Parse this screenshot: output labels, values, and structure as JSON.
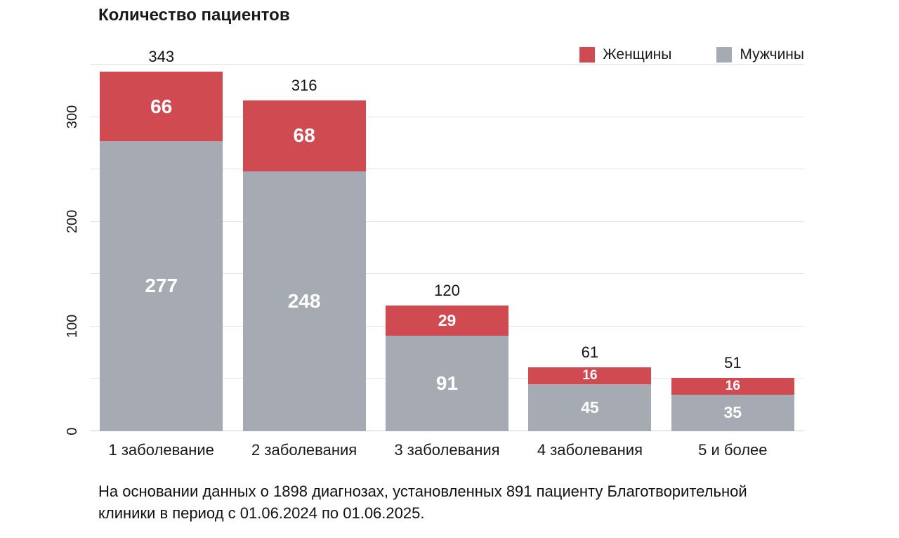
{
  "title": "Количество пациентов",
  "legend": {
    "items": [
      {
        "label": "Женщины",
        "color": "#d04b51"
      },
      {
        "label": "Мужчины",
        "color": "#a6abb3"
      }
    ]
  },
  "chart_data": {
    "type": "bar",
    "stacked": true,
    "title": "Количество пациентов",
    "categories": [
      "1 заболевание",
      "2 заболевания",
      "3 заболевания",
      "4 заболевания",
      "5 и более"
    ],
    "series": [
      {
        "name": "Мужчины",
        "color": "#a6abb3",
        "values": [
          277,
          248,
          91,
          45,
          35
        ]
      },
      {
        "name": "Женщины",
        "color": "#d04b51",
        "values": [
          66,
          68,
          29,
          16,
          16
        ]
      }
    ],
    "totals": [
      343,
      316,
      120,
      61,
      51
    ],
    "xlabel": "",
    "ylabel": "",
    "ylim": [
      0,
      350
    ],
    "yticks": [
      0,
      100,
      200,
      300
    ],
    "gridline_step": 50,
    "grid": true,
    "legend_position": "top-right",
    "segment_label_color": "#ffffff",
    "total_label_color": "#141414"
  },
  "footnote": "На основании данных о 1898 диагнозах, установленных 891 пациенту Благотворительной\nклиники в период с 01.06.2024 по 01.06.2025."
}
